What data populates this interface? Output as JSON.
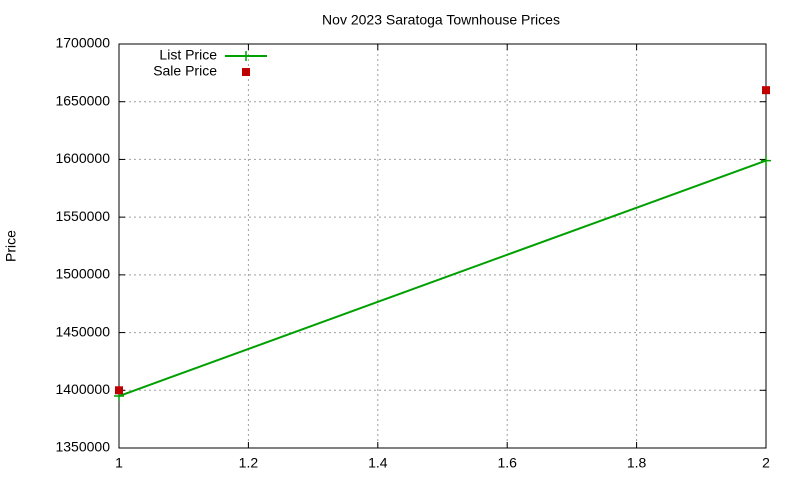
{
  "chart_data": {
    "type": "line",
    "title": "Nov 2023 Saratoga Townhouse Prices",
    "y_label": "Price",
    "series": [
      {
        "name": "List Price",
        "color": "#00a000",
        "style": "linespoints",
        "x": [
          1,
          2
        ],
        "values": [
          1395000,
          1599000
        ]
      },
      {
        "name": "Sale Price",
        "color": "#c00000",
        "style": "points",
        "x": [
          1,
          2
        ],
        "values": [
          1400000,
          1660000
        ]
      }
    ],
    "xlim": [
      1,
      2
    ],
    "xticks": [
      1,
      1.2,
      1.4,
      1.6,
      1.8,
      2
    ],
    "ylim": [
      1350000,
      1700000
    ],
    "yticks": [
      1350000,
      1400000,
      1450000,
      1500000,
      1550000,
      1600000,
      1650000,
      1700000
    ],
    "grid": true,
    "legend": "top-left"
  }
}
